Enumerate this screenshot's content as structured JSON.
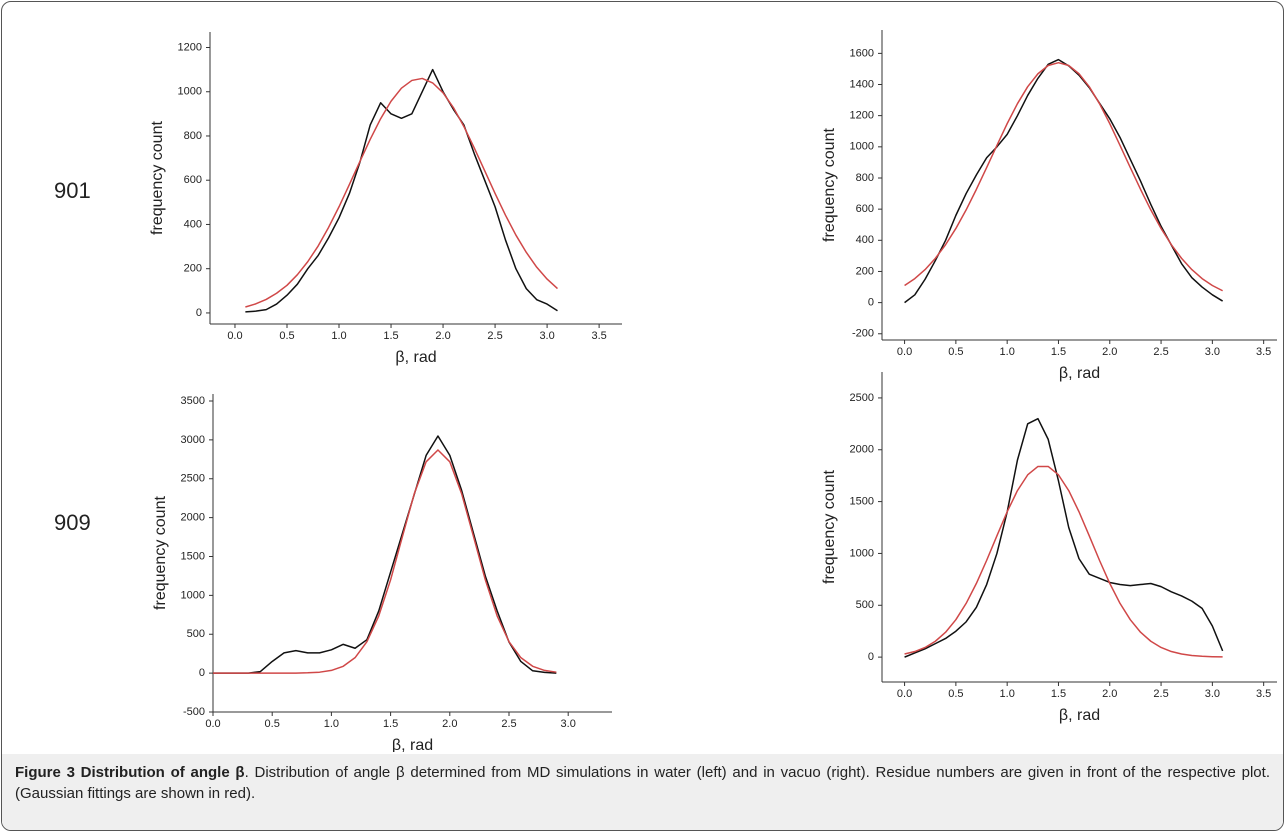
{
  "row_labels": [
    "901",
    "909"
  ],
  "caption": {
    "title": "Figure 3 Distribution of angle β",
    "text": ". Distribution of angle β determined from MD simulations in water (left) and in vacuo (right). Residue numbers are given in front of the respective plot. (Gaussian fittings are shown in red)."
  },
  "chart_data": [
    {
      "type": "line",
      "xlabel": "β, rad",
      "ylabel": "frequency count",
      "x": [
        0.1,
        0.2,
        0.3,
        0.4,
        0.5,
        0.6,
        0.7,
        0.8,
        0.9,
        1.0,
        1.1,
        1.2,
        1.3,
        1.4,
        1.5,
        1.6,
        1.7,
        1.8,
        1.9,
        2.0,
        2.1,
        2.2,
        2.3,
        2.4,
        2.5,
        2.6,
        2.7,
        2.8,
        2.9,
        3.0,
        3.1
      ],
      "series": [
        {
          "color": "#111111",
          "values": [
            5,
            8,
            15,
            40,
            80,
            130,
            200,
            260,
            340,
            430,
            540,
            680,
            850,
            950,
            900,
            880,
            900,
            1000,
            1100,
            1000,
            920,
            850,
            720,
            600,
            480,
            330,
            200,
            110,
            60,
            40,
            10
          ]
        },
        {
          "color": "#d04848",
          "values": [
            27,
            41,
            61,
            89,
            125,
            173,
            232,
            303,
            387,
            480,
            581,
            684,
            785,
            878,
            957,
            1016,
            1051,
            1060,
            1040,
            995,
            928,
            843,
            746,
            643,
            540,
            442,
            352,
            274,
            207,
            153,
            110
          ]
        }
      ],
      "xlim": [
        -0.24,
        3.72
      ],
      "ylim": [
        -50,
        1270
      ],
      "xticks": [
        {
          "value": 0,
          "label": "0.0"
        },
        0.5,
        {
          "value": 1,
          "label": "1.0"
        },
        1.5,
        {
          "value": 2,
          "label": "2.0"
        },
        2.5,
        {
          "value": 3,
          "label": "3.0"
        },
        3.5
      ],
      "yticks": [
        0,
        200,
        400,
        600,
        800,
        1000,
        1200
      ]
    },
    {
      "type": "line",
      "xlabel": "β, rad",
      "ylabel": "frequency count",
      "x": [
        0.0,
        0.1,
        0.2,
        0.3,
        0.4,
        0.5,
        0.6,
        0.7,
        0.8,
        0.9,
        1.0,
        1.1,
        1.2,
        1.3,
        1.4,
        1.5,
        1.6,
        1.7,
        1.8,
        1.9,
        2.0,
        2.1,
        2.2,
        2.3,
        2.4,
        2.5,
        2.6,
        2.7,
        2.8,
        2.9,
        3.0,
        3.1
      ],
      "series": [
        {
          "color": "#111111",
          "values": [
            0,
            50,
            150,
            270,
            400,
            560,
            700,
            820,
            930,
            1000,
            1080,
            1200,
            1330,
            1440,
            1530,
            1560,
            1520,
            1460,
            1380,
            1280,
            1180,
            1060,
            920,
            780,
            630,
            490,
            370,
            250,
            160,
            100,
            50,
            10
          ]
        },
        {
          "color": "#d04848",
          "values": [
            110,
            154,
            212,
            284,
            372,
            476,
            595,
            727,
            867,
            1009,
            1149,
            1277,
            1386,
            1469,
            1522,
            1540,
            1522,
            1469,
            1386,
            1277,
            1149,
            1009,
            867,
            727,
            595,
            476,
            372,
            284,
            212,
            154,
            110,
            76
          ]
        }
      ],
      "xlim": [
        -0.22,
        3.63
      ],
      "ylim": [
        -240,
        1750
      ],
      "xticks": [
        {
          "value": 0,
          "label": "0.0"
        },
        0.5,
        {
          "value": 1,
          "label": "1.0"
        },
        1.5,
        {
          "value": 2,
          "label": "2.0"
        },
        2.5,
        {
          "value": 3,
          "label": "3.0"
        },
        3.5
      ],
      "yticks": [
        -200,
        0,
        200,
        400,
        600,
        800,
        1000,
        1200,
        1400,
        1600
      ]
    },
    {
      "type": "line",
      "xlabel": "β, rad",
      "ylabel": "frequency count",
      "x": [
        0.0,
        0.1,
        0.2,
        0.3,
        0.4,
        0.5,
        0.6,
        0.7,
        0.8,
        0.9,
        1.0,
        1.1,
        1.2,
        1.3,
        1.4,
        1.5,
        1.6,
        1.7,
        1.8,
        1.9,
        2.0,
        2.1,
        2.2,
        2.3,
        2.4,
        2.5,
        2.6,
        2.7,
        2.8,
        2.9
      ],
      "series": [
        {
          "color": "#111111",
          "values": [
            0,
            0,
            0,
            0,
            20,
            150,
            260,
            290,
            260,
            260,
            300,
            370,
            320,
            430,
            800,
            1300,
            1800,
            2300,
            2800,
            3050,
            2800,
            2350,
            1800,
            1250,
            800,
            400,
            150,
            30,
            10,
            0
          ]
        },
        {
          "color": "#d04848",
          "values": [
            0,
            0,
            0,
            0,
            0,
            0,
            0,
            0,
            4,
            12,
            35,
            88,
            199,
            404,
            736,
            1200,
            1758,
            2308,
            2718,
            2870,
            2718,
            2308,
            1758,
            1200,
            736,
            404,
            199,
            88,
            35,
            12
          ]
        }
      ],
      "xlim": [
        0,
        3.37
      ],
      "ylim": [
        -500,
        3590
      ],
      "xticks": [
        {
          "value": 0,
          "label": "0.0"
        },
        0.5,
        {
          "value": 1,
          "label": "1.0"
        },
        1.5,
        {
          "value": 2,
          "label": "2.0"
        },
        2.5,
        {
          "value": 3,
          "label": "3.0"
        }
      ],
      "yticks": [
        -500,
        0,
        500,
        1000,
        1500,
        2000,
        2500,
        3000,
        3500
      ]
    },
    {
      "type": "line",
      "xlabel": "β, rad",
      "ylabel": "frequency count",
      "x": [
        0.0,
        0.1,
        0.2,
        0.3,
        0.4,
        0.5,
        0.6,
        0.7,
        0.8,
        0.9,
        1.0,
        1.1,
        1.2,
        1.3,
        1.4,
        1.5,
        1.6,
        1.7,
        1.8,
        1.9,
        2.0,
        2.1,
        2.2,
        2.3,
        2.4,
        2.5,
        2.6,
        2.7,
        2.8,
        2.9,
        3.0,
        3.1
      ],
      "series": [
        {
          "color": "#111111",
          "values": [
            0,
            40,
            80,
            130,
            180,
            250,
            340,
            480,
            700,
            1000,
            1400,
            1900,
            2250,
            2300,
            2100,
            1700,
            1250,
            950,
            800,
            760,
            720,
            700,
            690,
            700,
            710,
            680,
            630,
            590,
            540,
            470,
            300,
            60
          ]
        },
        {
          "color": "#d04848",
          "values": [
            30,
            54,
            93,
            153,
            240,
            361,
            518,
            711,
            933,
            1170,
            1402,
            1606,
            1758,
            1839,
            1839,
            1758,
            1606,
            1402,
            1170,
            933,
            711,
            518,
            361,
            240,
            153,
            93,
            54,
            30,
            16,
            8,
            4,
            2
          ]
        }
      ],
      "xlim": [
        -0.22,
        3.63
      ],
      "ylim": [
        -240,
        2750
      ],
      "xticks": [
        {
          "value": 0,
          "label": "0.0"
        },
        0.5,
        {
          "value": 1,
          "label": "1.0"
        },
        1.5,
        {
          "value": 2,
          "label": "2.0"
        },
        2.5,
        {
          "value": 3,
          "label": "3.0"
        },
        3.5
      ],
      "yticks": [
        0,
        500,
        1000,
        1500,
        2000,
        2500
      ]
    }
  ]
}
